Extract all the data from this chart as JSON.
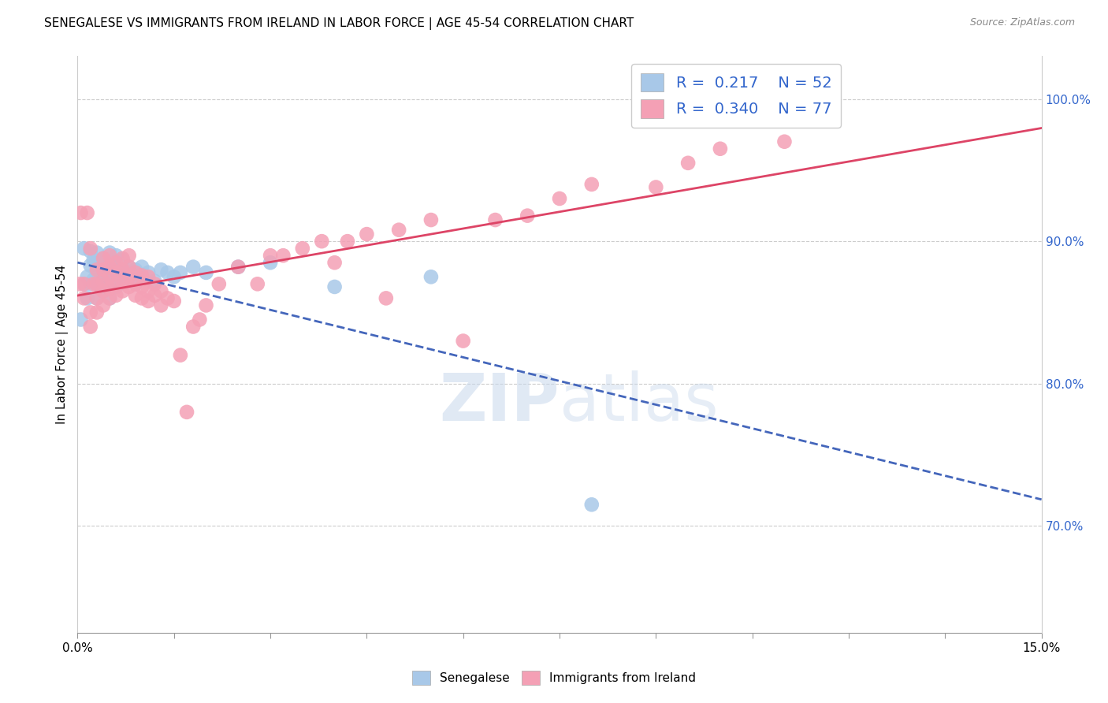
{
  "title": "SENEGALESE VS IMMIGRANTS FROM IRELAND IN LABOR FORCE | AGE 45-54 CORRELATION CHART",
  "source": "Source: ZipAtlas.com",
  "ylabel": "In Labor Force | Age 45-54",
  "right_yticks": [
    "70.0%",
    "80.0%",
    "90.0%",
    "100.0%"
  ],
  "right_ytick_vals": [
    0.7,
    0.8,
    0.9,
    1.0
  ],
  "xmin": 0.0,
  "xmax": 0.15,
  "ymin": 0.625,
  "ymax": 1.03,
  "watermark_zip": "ZIP",
  "watermark_atlas": "atlas",
  "blue_dot_color": "#a8c8e8",
  "pink_dot_color": "#f4a0b5",
  "trend_blue_color": "#4466bb",
  "trend_pink_color": "#dd4466",
  "grid_color": "#cccccc",
  "right_axis_color": "#3366cc",
  "title_fontsize": 11,
  "source_fontsize": 9,
  "legend_color": "#3366cc",
  "legend_R1": "0.217",
  "legend_N1": "52",
  "legend_R2": "0.340",
  "legend_N2": "77",
  "senegalese_x": [
    0.0005,
    0.001,
    0.001,
    0.0015,
    0.0015,
    0.002,
    0.002,
    0.002,
    0.0025,
    0.0025,
    0.003,
    0.003,
    0.003,
    0.003,
    0.003,
    0.004,
    0.004,
    0.004,
    0.004,
    0.004,
    0.005,
    0.005,
    0.005,
    0.005,
    0.005,
    0.005,
    0.006,
    0.006,
    0.006,
    0.006,
    0.007,
    0.007,
    0.007,
    0.008,
    0.008,
    0.009,
    0.009,
    0.01,
    0.01,
    0.011,
    0.012,
    0.013,
    0.014,
    0.015,
    0.016,
    0.018,
    0.02,
    0.025,
    0.03,
    0.04,
    0.055,
    0.08
  ],
  "senegalese_y": [
    0.845,
    0.87,
    0.895,
    0.86,
    0.875,
    0.87,
    0.883,
    0.893,
    0.873,
    0.887,
    0.86,
    0.87,
    0.878,
    0.885,
    0.892,
    0.865,
    0.87,
    0.878,
    0.882,
    0.888,
    0.86,
    0.867,
    0.872,
    0.88,
    0.885,
    0.892,
    0.868,
    0.875,
    0.882,
    0.89,
    0.872,
    0.878,
    0.887,
    0.875,
    0.882,
    0.87,
    0.88,
    0.875,
    0.882,
    0.878,
    0.872,
    0.88,
    0.878,
    0.875,
    0.878,
    0.882,
    0.878,
    0.882,
    0.885,
    0.868,
    0.875,
    0.715
  ],
  "ireland_x": [
    0.0003,
    0.0005,
    0.001,
    0.001,
    0.0015,
    0.002,
    0.002,
    0.002,
    0.0025,
    0.003,
    0.003,
    0.003,
    0.003,
    0.004,
    0.004,
    0.004,
    0.004,
    0.004,
    0.005,
    0.005,
    0.005,
    0.005,
    0.005,
    0.006,
    0.006,
    0.006,
    0.006,
    0.007,
    0.007,
    0.007,
    0.007,
    0.008,
    0.008,
    0.008,
    0.008,
    0.009,
    0.009,
    0.009,
    0.01,
    0.01,
    0.01,
    0.011,
    0.011,
    0.011,
    0.012,
    0.012,
    0.013,
    0.013,
    0.014,
    0.015,
    0.016,
    0.017,
    0.018,
    0.019,
    0.02,
    0.022,
    0.025,
    0.028,
    0.03,
    0.032,
    0.035,
    0.038,
    0.04,
    0.042,
    0.045,
    0.048,
    0.05,
    0.055,
    0.06,
    0.065,
    0.07,
    0.075,
    0.08,
    0.09,
    0.095,
    0.1,
    0.11
  ],
  "ireland_y": [
    0.87,
    0.92,
    0.86,
    0.87,
    0.92,
    0.84,
    0.85,
    0.895,
    0.87,
    0.85,
    0.86,
    0.87,
    0.88,
    0.855,
    0.865,
    0.872,
    0.88,
    0.888,
    0.86,
    0.867,
    0.875,
    0.882,
    0.89,
    0.862,
    0.87,
    0.878,
    0.885,
    0.865,
    0.872,
    0.88,
    0.888,
    0.868,
    0.875,
    0.882,
    0.89,
    0.862,
    0.87,
    0.878,
    0.86,
    0.868,
    0.876,
    0.858,
    0.865,
    0.875,
    0.862,
    0.87,
    0.855,
    0.865,
    0.86,
    0.858,
    0.82,
    0.78,
    0.84,
    0.845,
    0.855,
    0.87,
    0.882,
    0.87,
    0.89,
    0.89,
    0.895,
    0.9,
    0.885,
    0.9,
    0.905,
    0.86,
    0.908,
    0.915,
    0.83,
    0.915,
    0.918,
    0.93,
    0.94,
    0.938,
    0.955,
    0.965,
    0.97
  ],
  "series_names": [
    "Senegalese",
    "Immigrants from Ireland"
  ]
}
